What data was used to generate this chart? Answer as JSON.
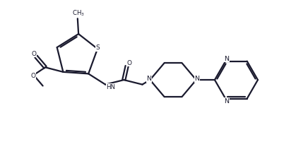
{
  "bg_color": "#ffffff",
  "line_color": "#1a1a2e",
  "line_width": 1.6,
  "figsize": [
    4.36,
    2.18
  ],
  "dpi": 100,
  "xlim": [
    0,
    100
  ],
  "ylim": [
    0,
    50
  ]
}
